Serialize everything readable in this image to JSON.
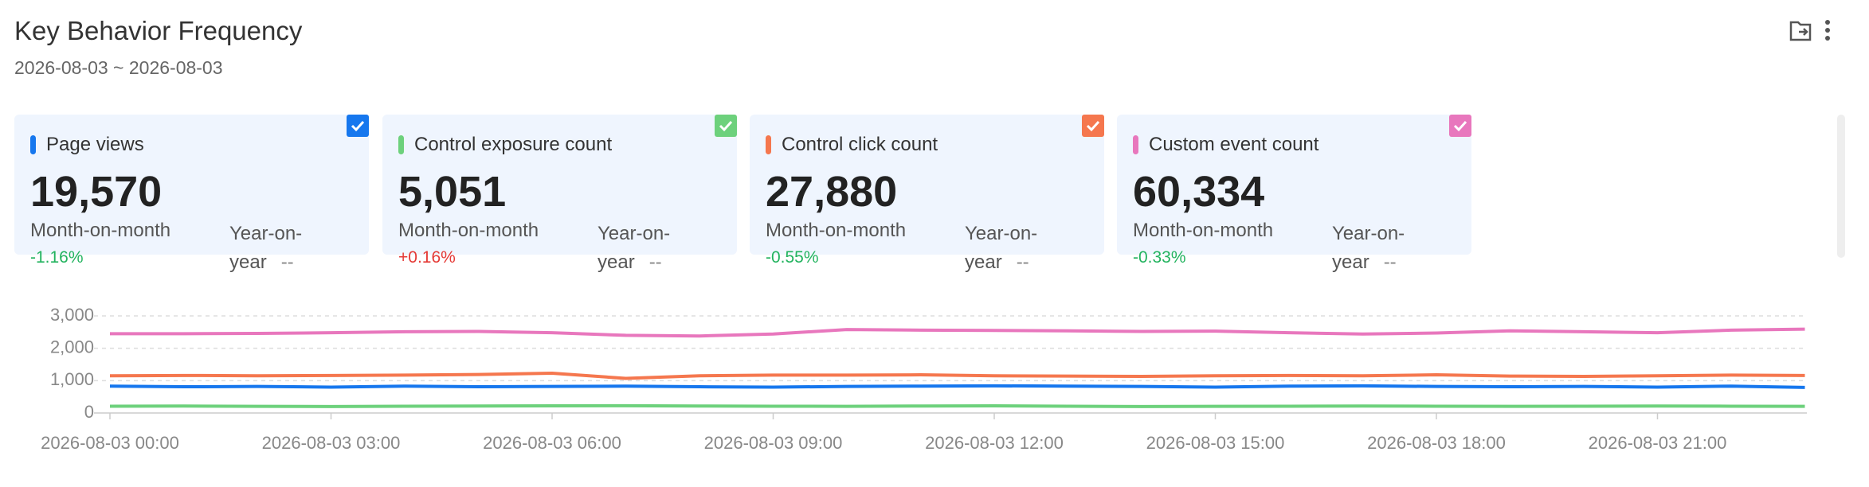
{
  "header": {
    "title": "Key Behavior Frequency",
    "date_range": "2026-08-03 ~ 2026-08-03"
  },
  "cards": [
    {
      "name": "Page views",
      "value": "19,570",
      "mom_label": "Month-on-month",
      "mom": "-1.16%",
      "yoy_label": "Year-on-year",
      "yoy": "--"
    },
    {
      "name": "Control exposure count",
      "value": "5,051",
      "mom_label": "Month-on-month",
      "mom": "+0.16%",
      "yoy_label": "Year-on-year",
      "yoy": "--"
    },
    {
      "name": "Control click count",
      "value": "27,880",
      "mom_label": "Month-on-month",
      "mom": "-0.55%",
      "yoy_label": "Year-on-year",
      "yoy": "--"
    },
    {
      "name": "Custom event count",
      "value": "60,334",
      "mom_label": "Month-on-month",
      "mom": "-0.33%",
      "yoy_label": "Year-on-year",
      "yoy": "--"
    }
  ],
  "chart_data": {
    "type": "line",
    "categories": [
      "2026-08-03 00:00",
      null,
      null,
      "2026-08-03 03:00",
      null,
      null,
      "2026-08-03 06:00",
      null,
      null,
      "2026-08-03 09:00",
      null,
      null,
      "2026-08-03 12:00",
      null,
      null,
      "2026-08-03 15:00",
      null,
      null,
      "2026-08-03 18:00",
      null,
      null,
      "2026-08-03 21:00",
      null,
      null
    ],
    "series": [
      {
        "color": "#1677ee",
        "values": [
          830,
          810,
          820,
          800,
          830,
          810,
          820,
          830,
          810,
          800,
          820,
          830,
          840,
          830,
          820,
          800,
          830,
          840,
          820,
          810,
          820,
          800,
          830,
          790
        ]
      },
      {
        "color": "#6dd17c",
        "values": [
          210,
          215,
          205,
          200,
          210,
          215,
          220,
          225,
          215,
          210,
          205,
          215,
          220,
          210,
          200,
          205,
          210,
          215,
          210,
          205,
          210,
          215,
          210,
          205
        ]
      },
      {
        "color": "#f5774e",
        "values": [
          1150,
          1160,
          1150,
          1160,
          1170,
          1190,
          1230,
          1070,
          1150,
          1170,
          1170,
          1180,
          1150,
          1140,
          1130,
          1150,
          1160,
          1150,
          1180,
          1140,
          1130,
          1150,
          1170,
          1160
        ]
      },
      {
        "color": "#e877bd",
        "values": [
          2450,
          2450,
          2460,
          2480,
          2510,
          2520,
          2480,
          2400,
          2380,
          2440,
          2580,
          2560,
          2550,
          2540,
          2520,
          2530,
          2480,
          2440,
          2470,
          2540,
          2510,
          2480,
          2560,
          2590
        ]
      }
    ],
    "ylim": [
      0,
      3000
    ],
    "yticks": [
      0,
      {
        "value": 1000,
        "label": "1,000"
      },
      {
        "value": 2000,
        "label": "2,000"
      },
      {
        "value": 3000,
        "label": "3,000"
      }
    ],
    "grid": true
  }
}
